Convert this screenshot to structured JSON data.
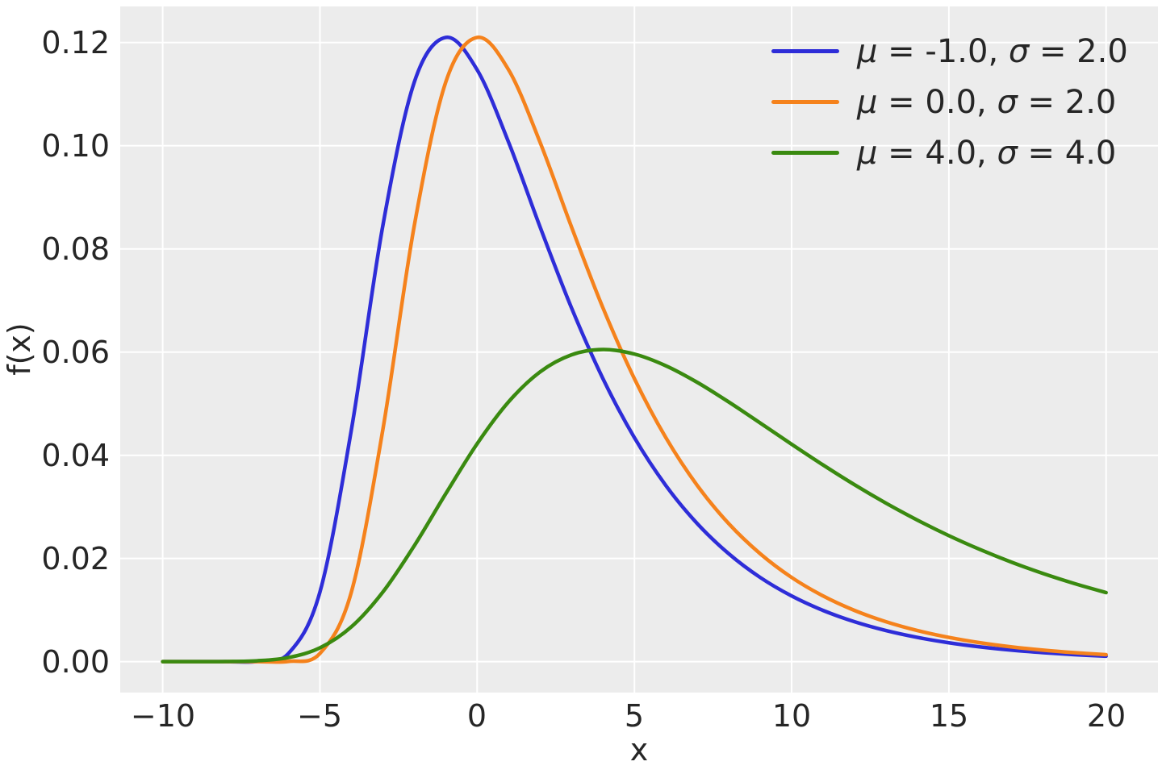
{
  "chart_data": {
    "type": "line",
    "title": "",
    "xlabel": "x",
    "ylabel": "f(x)",
    "xlim": [
      -11.35,
      21.65
    ],
    "ylim": [
      -0.006,
      0.127
    ],
    "grid": true,
    "grid_color": "#ffffff",
    "plot_background": "#ececec",
    "text_color": "#262626",
    "legend_position": "upper right",
    "xticks": [
      -10,
      -5,
      0,
      5,
      10,
      15,
      20
    ],
    "xtick_labels": [
      "−10",
      "−5",
      "0",
      "5",
      "10",
      "15",
      "20"
    ],
    "yticks": [
      0.0,
      0.02,
      0.04,
      0.06,
      0.08,
      0.1,
      0.12
    ],
    "ytick_labels": [
      "0.00",
      "0.02",
      "0.04",
      "0.06",
      "0.08",
      "0.10",
      "0.12"
    ],
    "x": [
      -10,
      -9,
      -8,
      -7,
      -6,
      -5,
      -4,
      -3,
      -2,
      -1,
      0,
      1,
      2,
      3,
      4,
      5,
      6,
      7,
      8,
      9,
      10,
      11,
      12,
      13,
      14,
      15,
      16,
      17,
      18,
      19,
      20
    ],
    "series": [
      {
        "name": "μ = -1.0, σ = 2.0",
        "mu": -1.0,
        "sigma": 2.0,
        "color": "#2e2dd8",
        "values": [
          0,
          0,
          0,
          4e-05,
          0.00158,
          0.01348,
          0.04493,
          0.08448,
          0.11231,
          0.12099,
          0.11471,
          0.10067,
          0.08427,
          0.06858,
          0.05486,
          0.04342,
          0.03414,
          0.02675,
          0.02092,
          0.01632,
          0.01273,
          0.00992,
          0.00773,
          0.00602,
          0.00469,
          0.00365,
          0.00285,
          0.00222,
          0.00173,
          0.00134,
          0.00105
        ]
      },
      {
        "name": "μ = 0.0, σ = 2.0",
        "mu": 0.0,
        "sigma": 2.0,
        "color": "#f5821c",
        "values": [
          0,
          0,
          0,
          0,
          4e-05,
          0.00158,
          0.01348,
          0.04493,
          0.08448,
          0.11231,
          0.12099,
          0.11471,
          0.10067,
          0.08427,
          0.06858,
          0.05486,
          0.04342,
          0.03414,
          0.02675,
          0.02092,
          0.01632,
          0.01273,
          0.00992,
          0.00773,
          0.00602,
          0.00469,
          0.00365,
          0.00285,
          0.00222,
          0.00173,
          0.00134
        ]
      },
      {
        "name": "μ = 4.0, σ = 4.0",
        "mu": 4.0,
        "sigma": 4.0,
        "color": "#3a8a10",
        "values": [
          0,
          0,
          2e-05,
          0.00016,
          0.00079,
          0.00267,
          0.00674,
          0.01347,
          0.02246,
          0.03253,
          0.04224,
          0.05036,
          0.05616,
          0.05947,
          0.06049,
          0.05962,
          0.05735,
          0.05413,
          0.05033,
          0.04626,
          0.04214,
          0.03812,
          0.03429,
          0.03072,
          0.02743,
          0.02442,
          0.02171,
          0.01926,
          0.01707,
          0.01512,
          0.01338
        ]
      }
    ]
  }
}
